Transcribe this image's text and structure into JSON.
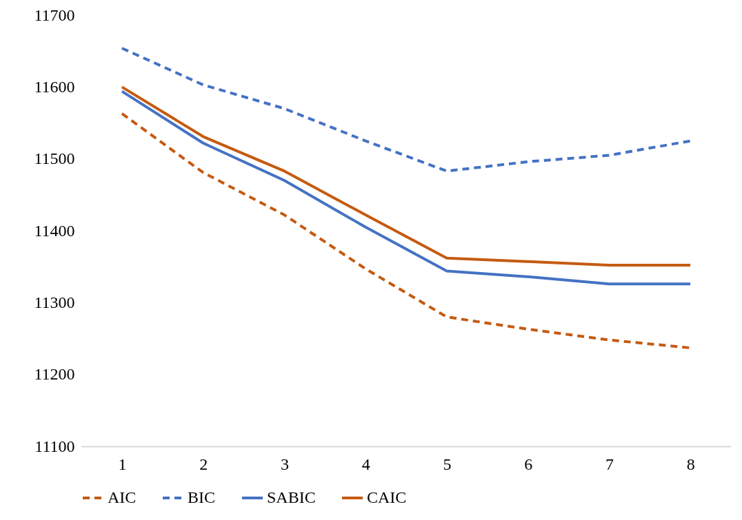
{
  "chart_data": {
    "type": "line",
    "categories": [
      "1",
      "2",
      "3",
      "4",
      "5",
      "6",
      "7",
      "8"
    ],
    "series": [
      {
        "name": "AIC",
        "color": "#c55a11",
        "line_style": "dashed",
        "values": [
          11563,
          11481,
          11422,
          11347,
          11280,
          11263,
          11248,
          11237
        ]
      },
      {
        "name": "BIC",
        "color": "#4472c4",
        "line_style": "dashed",
        "values": [
          11654,
          11603,
          11570,
          11525,
          11483,
          11496,
          11505,
          11525
        ]
      },
      {
        "name": "SABIC",
        "color": "#4472c4",
        "line_style": "solid",
        "values": [
          11594,
          11522,
          11470,
          11405,
          11344,
          11336,
          11326,
          11326
        ]
      },
      {
        "name": "CAIC",
        "color": "#c55a11",
        "line_style": "solid",
        "values": [
          11600,
          11531,
          11483,
          11422,
          11362,
          11357,
          11352,
          11352
        ]
      }
    ],
    "ylim": [
      11100,
      11700
    ],
    "yticks": [
      11100,
      11200,
      11300,
      11400,
      11500,
      11600,
      11700
    ],
    "grid": false,
    "legend": "bottom",
    "marker": "none"
  }
}
